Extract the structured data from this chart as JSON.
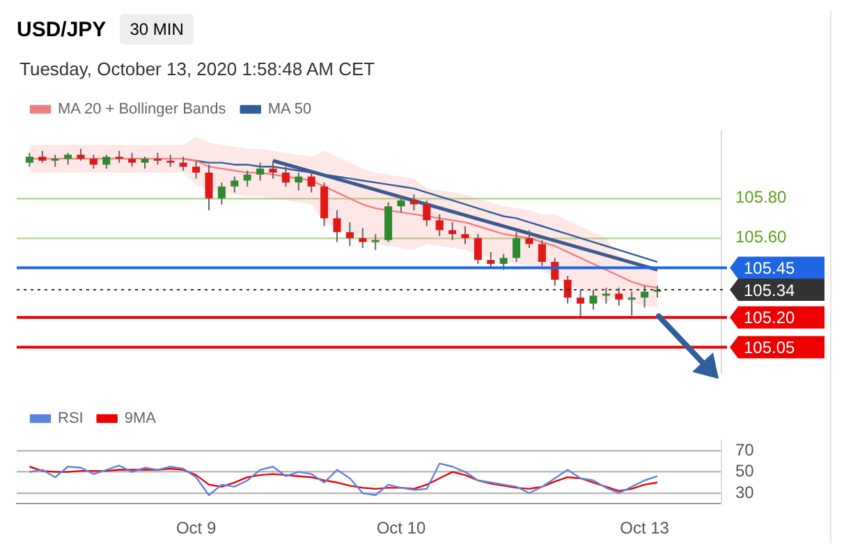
{
  "chart_data": [
    {
      "type": "candlestick",
      "title": "USD/JPY",
      "subtitle": "Tuesday, October 13, 2020 1:58:48 AM CET",
      "annotations": [
        "30 MIN"
      ],
      "categories": [
        null,
        null,
        null,
        null,
        null,
        null,
        null,
        null,
        null,
        null,
        null,
        null,
        null,
        null,
        null,
        null,
        null,
        null,
        null,
        null,
        null,
        null,
        null,
        null,
        null,
        null,
        null,
        null,
        null,
        null,
        null,
        null,
        null,
        null,
        null,
        null,
        null,
        null,
        null,
        null,
        null,
        null,
        null,
        null,
        null,
        null,
        null,
        null,
        null,
        null
      ],
      "ohlc": [
        [
          105.98,
          106.03,
          105.96,
          106.01
        ],
        [
          106.01,
          106.04,
          105.98,
          105.99
        ],
        [
          105.99,
          106.02,
          105.96,
          106.0
        ],
        [
          106.0,
          106.03,
          105.97,
          106.02
        ],
        [
          106.02,
          106.05,
          105.99,
          106.0
        ],
        [
          106.0,
          106.02,
          105.95,
          105.97
        ],
        [
          105.97,
          106.02,
          105.95,
          106.01
        ],
        [
          106.01,
          106.04,
          105.98,
          106.0
        ],
        [
          106.0,
          106.03,
          105.96,
          105.98
        ],
        [
          105.98,
          106.01,
          105.95,
          106.0
        ],
        [
          106.0,
          106.03,
          105.97,
          105.99
        ],
        [
          105.99,
          106.02,
          105.96,
          105.98
        ],
        [
          105.98,
          106.01,
          105.94,
          105.96
        ],
        [
          105.96,
          105.99,
          105.9,
          105.93
        ],
        [
          105.93,
          105.97,
          105.74,
          105.8
        ],
        [
          105.8,
          105.88,
          105.77,
          105.86
        ],
        [
          105.86,
          105.91,
          105.83,
          105.89
        ],
        [
          105.89,
          105.94,
          105.86,
          105.92
        ],
        [
          105.92,
          105.98,
          105.89,
          105.95
        ],
        [
          105.95,
          105.99,
          105.9,
          105.93
        ],
        [
          105.93,
          105.96,
          105.86,
          105.88
        ],
        [
          105.88,
          105.93,
          105.84,
          105.91
        ],
        [
          105.91,
          105.94,
          105.83,
          105.86
        ],
        [
          105.86,
          105.88,
          105.66,
          105.7
        ],
        [
          105.7,
          105.74,
          105.58,
          105.63
        ],
        [
          105.63,
          105.68,
          105.56,
          105.6
        ],
        [
          105.6,
          105.65,
          105.55,
          105.58
        ],
        [
          105.58,
          105.62,
          105.54,
          105.59
        ],
        [
          105.59,
          105.78,
          105.58,
          105.76
        ],
        [
          105.76,
          105.81,
          105.73,
          105.79
        ],
        [
          105.79,
          105.82,
          105.74,
          105.77
        ],
        [
          105.77,
          105.79,
          105.66,
          105.69
        ],
        [
          105.69,
          105.72,
          105.61,
          105.64
        ],
        [
          105.64,
          105.68,
          105.59,
          105.62
        ],
        [
          105.62,
          105.66,
          105.57,
          105.6
        ],
        [
          105.6,
          105.62,
          105.47,
          105.49
        ],
        [
          105.49,
          105.53,
          105.45,
          105.47
        ],
        [
          105.47,
          105.52,
          105.44,
          105.5
        ],
        [
          105.5,
          105.63,
          105.48,
          105.6
        ],
        [
          105.6,
          105.64,
          105.55,
          105.57
        ],
        [
          105.57,
          105.59,
          105.46,
          105.48
        ],
        [
          105.48,
          105.5,
          105.36,
          105.39
        ],
        [
          105.39,
          105.41,
          105.27,
          105.3
        ],
        [
          105.3,
          105.34,
          105.2,
          105.27
        ],
        [
          105.27,
          105.34,
          105.24,
          105.31
        ],
        [
          105.31,
          105.35,
          105.27,
          105.32
        ],
        [
          105.32,
          105.35,
          105.26,
          105.29
        ],
        [
          105.29,
          105.33,
          105.21,
          105.3
        ],
        [
          105.3,
          105.36,
          105.25,
          105.33
        ],
        [
          105.33,
          105.36,
          105.3,
          105.34
        ]
      ],
      "series": [
        {
          "name": "MA 20 + Bollinger Bands",
          "type": "line",
          "color": "#f08080",
          "values": [
            106.0,
            106.0,
            106.0,
            106.0,
            106.0,
            106.0,
            106.0,
            106.0,
            106.0,
            106.0,
            106.0,
            106.0,
            106.0,
            105.99,
            105.96,
            105.95,
            105.94,
            105.93,
            105.93,
            105.92,
            105.91,
            105.9,
            105.89,
            105.86,
            105.83,
            105.8,
            105.77,
            105.75,
            105.74,
            105.73,
            105.72,
            105.71,
            105.7,
            105.69,
            105.68,
            105.66,
            105.64,
            105.62,
            105.61,
            105.6,
            105.58,
            105.56,
            105.53,
            105.5,
            105.47,
            105.44,
            105.41,
            105.38,
            105.36,
            105.35
          ],
          "upper": [
            106.07,
            106.07,
            106.07,
            106.07,
            106.07,
            106.07,
            106.07,
            106.07,
            106.07,
            106.07,
            106.07,
            106.07,
            106.07,
            106.11,
            106.08,
            106.07,
            106.06,
            106.05,
            106.05,
            106.04,
            106.03,
            106.02,
            106.01,
            106.04,
            106.01,
            105.98,
            105.95,
            105.93,
            105.92,
            105.91,
            105.9,
            105.85,
            105.84,
            105.83,
            105.82,
            105.8,
            105.78,
            105.76,
            105.75,
            105.74,
            105.72,
            105.72,
            105.69,
            105.66,
            105.63,
            105.6,
            105.51,
            105.48,
            105.46,
            105.45
          ],
          "lower": [
            105.93,
            105.93,
            105.93,
            105.93,
            105.93,
            105.93,
            105.93,
            105.93,
            105.93,
            105.93,
            105.93,
            105.93,
            105.93,
            105.87,
            105.84,
            105.83,
            105.82,
            105.81,
            105.81,
            105.8,
            105.79,
            105.78,
            105.77,
            105.68,
            105.65,
            105.62,
            105.59,
            105.57,
            105.56,
            105.55,
            105.54,
            105.57,
            105.56,
            105.55,
            105.54,
            105.52,
            105.5,
            105.48,
            105.47,
            105.46,
            105.44,
            105.4,
            105.37,
            105.34,
            105.31,
            105.28,
            105.31,
            105.28,
            105.26,
            105.25
          ]
        },
        {
          "name": "MA 50",
          "type": "line",
          "color": "#2f5f98",
          "values": [
            null,
            null,
            null,
            null,
            null,
            null,
            null,
            null,
            null,
            null,
            null,
            null,
            106.0,
            105.99,
            105.98,
            105.98,
            105.97,
            105.97,
            105.96,
            105.96,
            105.95,
            105.94,
            105.93,
            105.92,
            105.91,
            105.9,
            105.89,
            105.88,
            105.87,
            105.86,
            105.85,
            105.83,
            105.81,
            105.79,
            105.77,
            105.75,
            105.73,
            105.71,
            105.7,
            105.68,
            105.66,
            105.64,
            105.62,
            105.6,
            105.58,
            105.56,
            105.54,
            105.52,
            105.5,
            105.48
          ]
        },
        {
          "type": "line",
          "color": "#3b5b8f",
          "values": [
            null,
            null,
            null,
            null,
            null,
            null,
            null,
            null,
            null,
            null,
            null,
            null,
            null,
            null,
            null,
            null,
            null,
            null,
            null,
            105.99,
            null,
            null,
            null,
            null,
            null,
            null,
            null,
            null,
            null,
            null,
            null,
            null,
            null,
            null,
            null,
            null,
            null,
            null,
            null,
            null,
            null,
            null,
            null,
            null,
            null,
            null,
            null,
            null,
            null,
            105.44
          ]
        }
      ],
      "ylim": [
        104.92,
        106.14
      ],
      "yticks": [
        {
          "value": 105.6,
          "label": "105.60"
        },
        {
          "value": 105.8,
          "label": "105.80"
        }
      ],
      "grid": "y",
      "tick_labels": "y",
      "legend": "top left",
      "ref_lines": [
        {
          "axis": "y",
          "value": 105.45,
          "label": "105.45",
          "color": "#1f66e5"
        },
        {
          "axis": "y",
          "value": 105.34,
          "label": "105.34",
          "color": "#333333",
          "line_style": "dotted"
        },
        {
          "axis": "y",
          "value": 105.2,
          "label": "105.20",
          "color": "#ee0000"
        },
        {
          "axis": "y",
          "value": 105.05,
          "label": "105.05",
          "color": "#ee0000"
        }
      ]
    },
    {
      "type": "line",
      "categories": [
        null,
        null,
        null,
        null,
        null,
        null,
        null,
        null,
        null,
        null,
        null,
        null,
        null,
        "Oct 9",
        null,
        null,
        null,
        null,
        null,
        null,
        null,
        null,
        null,
        null,
        null,
        null,
        null,
        null,
        null,
        "Oct 10",
        null,
        null,
        null,
        null,
        null,
        null,
        null,
        null,
        null,
        null,
        null,
        null,
        null,
        null,
        null,
        null,
        null,
        null,
        "Oct 13",
        null
      ],
      "series": [
        {
          "name": "RSI",
          "color": "#5b84e0",
          "values": [
            50,
            52,
            45,
            55,
            54,
            48,
            52,
            56,
            50,
            54,
            52,
            55,
            53,
            45,
            28,
            38,
            36,
            42,
            52,
            55,
            46,
            50,
            48,
            40,
            52,
            44,
            30,
            28,
            38,
            35,
            33,
            34,
            58,
            55,
            50,
            42,
            40,
            38,
            36,
            30,
            36,
            44,
            52,
            44,
            42,
            35,
            30,
            36,
            42,
            46
          ]
        },
        {
          "name": "9MA",
          "color": "#ee0000",
          "values": [
            55,
            51,
            50,
            50,
            51,
            51,
            51,
            52,
            52,
            52,
            52,
            53,
            52,
            47,
            38,
            36,
            40,
            45,
            47,
            48,
            47,
            46,
            45,
            42,
            40,
            37,
            35,
            34,
            35,
            35,
            34,
            38,
            44,
            50,
            47,
            42,
            39,
            37,
            35,
            34,
            36,
            41,
            45,
            44,
            40,
            36,
            32,
            34,
            38,
            40
          ]
        }
      ],
      "ylim": [
        20,
        80
      ],
      "yticks": [
        30,
        50,
        70
      ],
      "grid": "y",
      "legend": "top left"
    }
  ]
}
